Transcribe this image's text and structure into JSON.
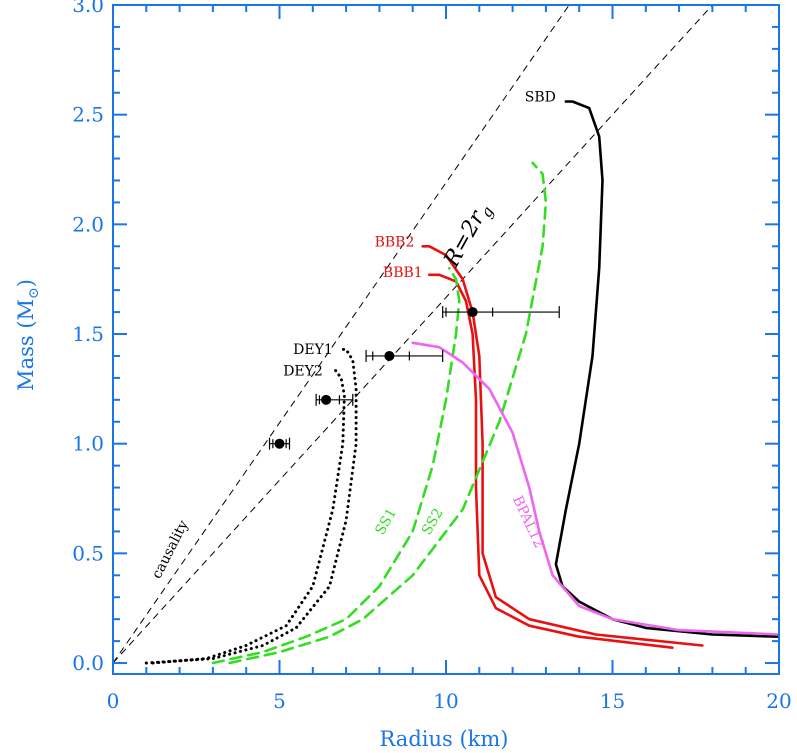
{
  "colors": {
    "axis": "#1a75e8",
    "red": "#e81010",
    "green": "#33dd22",
    "black": "#000000",
    "magenta": "#ee66ee"
  },
  "chart_data": {
    "type": "line",
    "xlabel": "Radius (km)",
    "ylabel": "Mass (M",
    "ylabel_sub": "⊙",
    "ylabel_close": ")",
    "xlim": [
      0,
      20
    ],
    "ylim": [
      -0.05,
      3.0
    ],
    "xticks": [
      0,
      5,
      10,
      15,
      20
    ],
    "xtick_labels": [
      "0",
      "5",
      "10",
      "15",
      "20"
    ],
    "yticks": [
      0.0,
      0.5,
      1.0,
      1.5,
      2.0,
      2.5,
      3.0
    ],
    "ytick_labels": [
      "0.0",
      "0.5",
      "1.0",
      "1.5",
      "2.0",
      "2.5",
      "3.0"
    ],
    "grid": false,
    "reference_lines": [
      {
        "label": "causality",
        "points": [
          [
            0,
            0
          ],
          [
            13.7,
            3.0
          ]
        ]
      },
      {
        "label": "R=2r",
        "label_sub": "g",
        "points": [
          [
            0,
            0
          ],
          [
            18.0,
            3.0
          ]
        ]
      }
    ],
    "series": [
      {
        "name": "SBD",
        "color": "black",
        "dash": "solid",
        "points": [
          [
            20.0,
            0.12
          ],
          [
            18.0,
            0.13
          ],
          [
            16.0,
            0.16
          ],
          [
            15.0,
            0.2
          ],
          [
            14.0,
            0.28
          ],
          [
            13.5,
            0.35
          ],
          [
            13.3,
            0.45
          ],
          [
            13.6,
            0.7
          ],
          [
            14.0,
            1.0
          ],
          [
            14.4,
            1.4
          ],
          [
            14.6,
            1.8
          ],
          [
            14.7,
            2.2
          ],
          [
            14.6,
            2.4
          ],
          [
            14.3,
            2.53
          ],
          [
            13.8,
            2.56
          ],
          [
            13.6,
            2.56
          ]
        ]
      },
      {
        "name": "BBB1",
        "color": "red",
        "dash": "solid",
        "points": [
          [
            16.8,
            0.07
          ],
          [
            14.0,
            0.12
          ],
          [
            12.5,
            0.17
          ],
          [
            11.5,
            0.25
          ],
          [
            11.0,
            0.4
          ],
          [
            10.9,
            0.8
          ],
          [
            10.9,
            1.2
          ],
          [
            10.8,
            1.5
          ],
          [
            10.6,
            1.65
          ],
          [
            10.3,
            1.74
          ],
          [
            9.8,
            1.77
          ],
          [
            9.5,
            1.77
          ]
        ]
      },
      {
        "name": "BBB2",
        "color": "red",
        "dash": "solid",
        "points": [
          [
            17.7,
            0.08
          ],
          [
            14.5,
            0.13
          ],
          [
            12.5,
            0.2
          ],
          [
            11.5,
            0.3
          ],
          [
            11.1,
            0.5
          ],
          [
            11.1,
            1.0
          ],
          [
            11.0,
            1.4
          ],
          [
            10.8,
            1.6
          ],
          [
            10.5,
            1.75
          ],
          [
            10.0,
            1.86
          ],
          [
            9.5,
            1.9
          ],
          [
            9.3,
            1.9
          ]
        ]
      },
      {
        "name": "SS1",
        "color": "green",
        "dash": "dashed",
        "points": [
          [
            3.0,
            0.0
          ],
          [
            4.5,
            0.05
          ],
          [
            5.8,
            0.12
          ],
          [
            7.0,
            0.2
          ],
          [
            8.0,
            0.35
          ],
          [
            9.0,
            0.6
          ],
          [
            9.6,
            0.9
          ],
          [
            10.0,
            1.2
          ],
          [
            10.3,
            1.5
          ],
          [
            10.4,
            1.65
          ],
          [
            10.3,
            1.75
          ],
          [
            10.1,
            1.8
          ]
        ]
      },
      {
        "name": "SS2",
        "color": "green",
        "dash": "dashed",
        "points": [
          [
            3.5,
            0.0
          ],
          [
            5.0,
            0.05
          ],
          [
            6.5,
            0.12
          ],
          [
            7.5,
            0.2
          ],
          [
            9.0,
            0.4
          ],
          [
            10.5,
            0.7
          ],
          [
            11.6,
            1.1
          ],
          [
            12.4,
            1.5
          ],
          [
            12.9,
            1.9
          ],
          [
            13.0,
            2.1
          ],
          [
            12.9,
            2.23
          ],
          [
            12.6,
            2.28
          ]
        ]
      },
      {
        "name": "BPAL12",
        "color": "magenta",
        "dash": "solid",
        "points": [
          [
            20.0,
            0.13
          ],
          [
            17.0,
            0.15
          ],
          [
            15.0,
            0.2
          ],
          [
            14.0,
            0.26
          ],
          [
            13.2,
            0.4
          ],
          [
            12.8,
            0.6
          ],
          [
            12.5,
            0.8
          ],
          [
            12.0,
            1.05
          ],
          [
            11.3,
            1.25
          ],
          [
            10.5,
            1.37
          ],
          [
            9.8,
            1.44
          ],
          [
            9.0,
            1.46
          ]
        ]
      },
      {
        "name": "DEY1",
        "color": "black",
        "dash": "dotted",
        "points": [
          [
            1.0,
            0.0
          ],
          [
            3.0,
            0.02
          ],
          [
            4.5,
            0.08
          ],
          [
            5.5,
            0.16
          ],
          [
            6.5,
            0.35
          ],
          [
            7.0,
            0.65
          ],
          [
            7.3,
            1.0
          ],
          [
            7.3,
            1.25
          ],
          [
            7.2,
            1.38
          ],
          [
            7.0,
            1.43
          ],
          [
            6.8,
            1.43
          ]
        ]
      },
      {
        "name": "DEY2",
        "color": "black",
        "dash": "dotted",
        "points": [
          [
            1.2,
            0.0
          ],
          [
            2.8,
            0.02
          ],
          [
            4.0,
            0.08
          ],
          [
            5.2,
            0.17
          ],
          [
            6.0,
            0.35
          ],
          [
            6.6,
            0.7
          ],
          [
            6.9,
            1.0
          ],
          [
            6.95,
            1.22
          ],
          [
            6.85,
            1.3
          ],
          [
            6.6,
            1.35
          ]
        ]
      }
    ],
    "points_with_error": [
      {
        "x": 5.0,
        "y": 1.0,
        "xerr_outer": [
          4.7,
          5.3
        ],
        "xerr_inner": [
          4.8,
          5.2
        ]
      },
      {
        "x": 6.4,
        "y": 1.2,
        "xerr_outer": [
          6.1,
          7.2
        ],
        "xerr_inner": [
          6.2,
          6.8
        ]
      },
      {
        "x": 8.3,
        "y": 1.4,
        "xerr_outer": [
          7.6,
          9.9
        ],
        "xerr_inner": [
          7.8,
          8.9
        ]
      },
      {
        "x": 10.8,
        "y": 1.6,
        "xerr_outer": [
          9.9,
          13.4
        ],
        "xerr_inner": [
          10.0,
          11.4
        ]
      }
    ],
    "annotations": [
      {
        "text": "SBD",
        "color": "black",
        "x": 13.3,
        "y": 2.56,
        "anchor": "end",
        "rotate": 0,
        "big": false
      },
      {
        "text": "BBB2",
        "color": "red",
        "x": 9.05,
        "y": 1.9,
        "anchor": "end",
        "rotate": 0,
        "big": false
      },
      {
        "text": "BBB1",
        "color": "red",
        "x": 9.3,
        "y": 1.76,
        "anchor": "end",
        "rotate": 0,
        "big": false
      },
      {
        "text": "DEY1",
        "color": "black",
        "x": 6.6,
        "y": 1.41,
        "anchor": "end",
        "rotate": 0,
        "big": false
      },
      {
        "text": "DEY2",
        "color": "black",
        "x": 6.3,
        "y": 1.31,
        "anchor": "end",
        "rotate": 0,
        "big": false
      },
      {
        "text": "BPAL12",
        "color": "magenta",
        "x": 12.0,
        "y": 0.75,
        "anchor": "start",
        "rotate": 65,
        "big": false
      },
      {
        "text": "SS1",
        "color": "green",
        "x": 8.1,
        "y": 0.58,
        "anchor": "start",
        "rotate": -60,
        "big": false
      },
      {
        "text": "SS2",
        "color": "green",
        "x": 9.5,
        "y": 0.58,
        "anchor": "start",
        "rotate": -60,
        "big": false
      },
      {
        "text": "causality",
        "color": "black",
        "x": 1.4,
        "y": 0.38,
        "anchor": "start",
        "rotate": -63,
        "big": false
      }
    ],
    "rg_label": {
      "text": "R=2r",
      "sub": "g",
      "x": 10.3,
      "y": 1.8,
      "rotate": -61
    }
  }
}
